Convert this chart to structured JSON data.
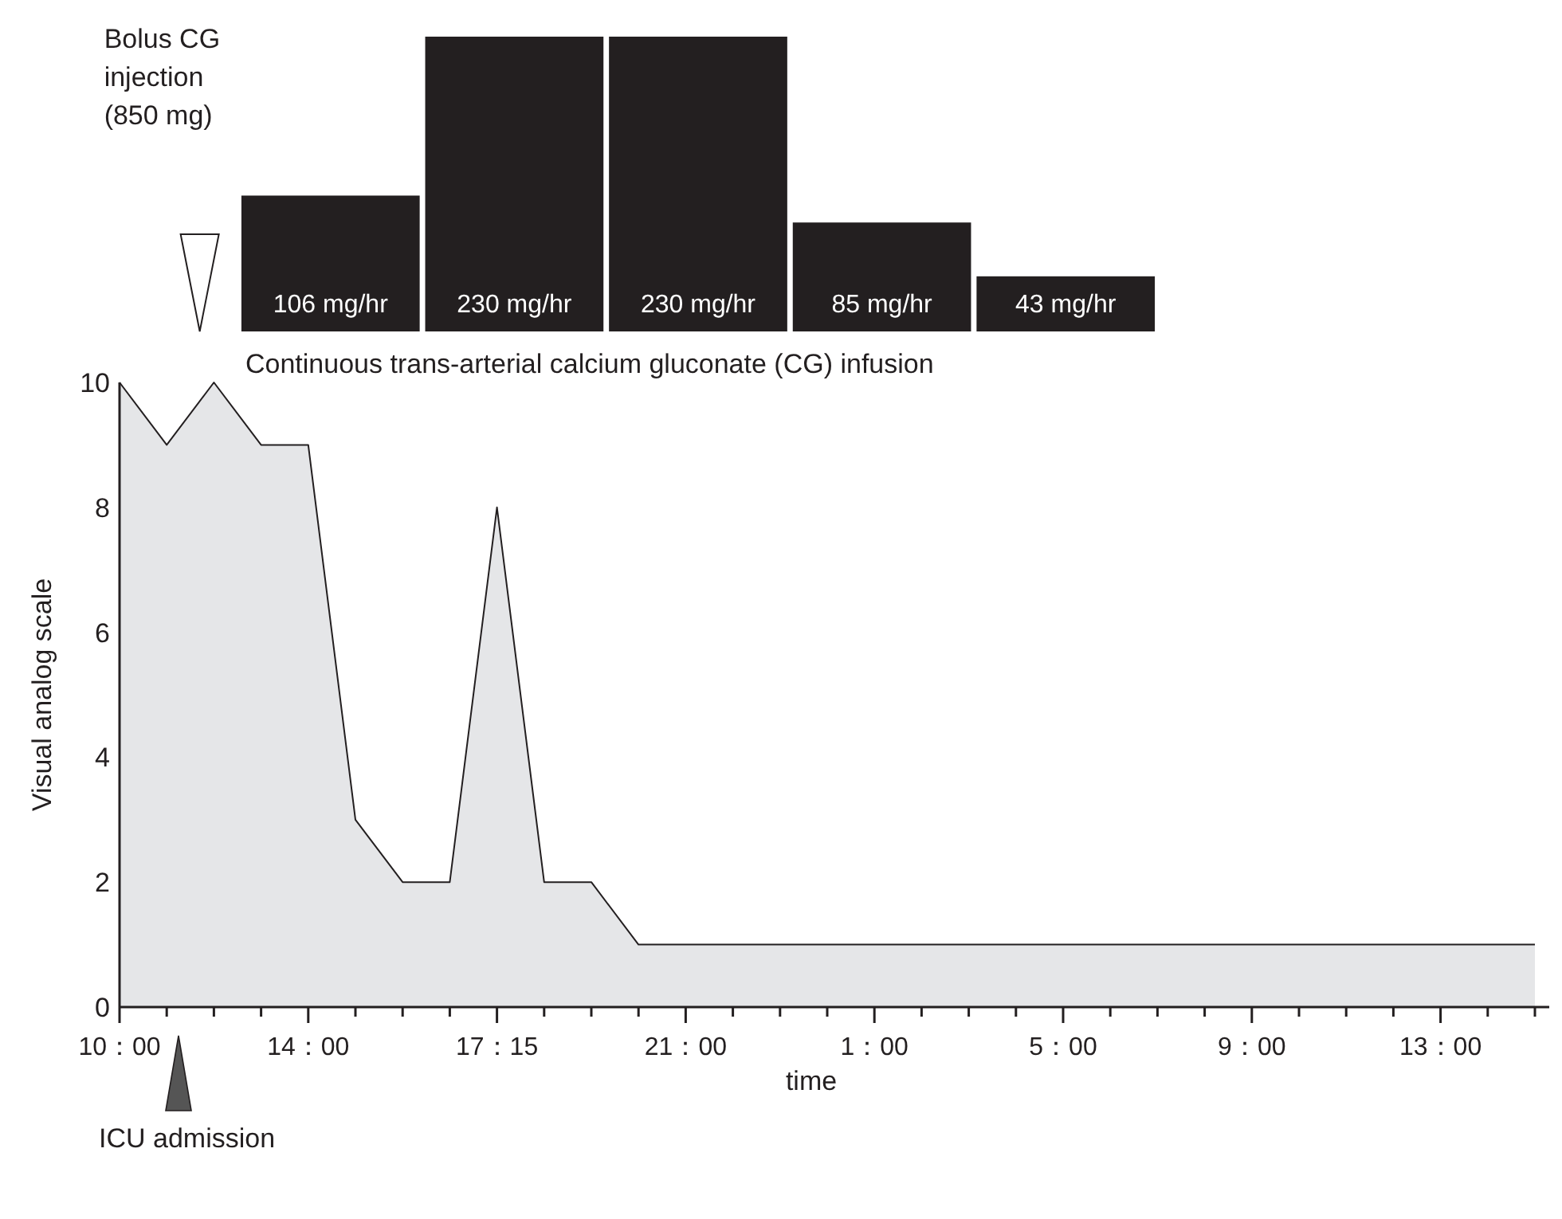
{
  "chart_data": [
    {
      "type": "area",
      "xlabel": "time",
      "ylabel": "Visual analog scale",
      "categories": [
        "10：00",
        null,
        null,
        null,
        "14：00",
        null,
        null,
        null,
        "17：15",
        null,
        null,
        null,
        "21：00",
        null,
        null,
        null,
        "1：00",
        null,
        null,
        null,
        "5：00",
        null,
        null,
        null,
        "9：00",
        null,
        null,
        null,
        "13：00",
        null,
        null
      ],
      "series": [
        {
          "color": "#e5e6e8",
          "values": [
            10,
            9,
            10,
            9,
            9,
            3,
            2,
            2,
            8,
            2,
            2,
            1,
            1,
            1,
            1,
            1,
            1,
            1,
            1,
            1,
            1,
            1,
            1,
            1,
            1,
            1,
            1,
            1,
            1,
            1,
            1
          ]
        }
      ],
      "ylim": [
        0,
        10
      ],
      "yticks": [
        0,
        2,
        4,
        6,
        8,
        10
      ],
      "grid": false,
      "annotations": [
        "Bolus CG\ninjection\n(850 mg)",
        "ICU admission"
      ]
    },
    {
      "type": "bar",
      "title": "Continuous trans-arterial calcium gluconate (CG) infusion",
      "categories": [
        null,
        null,
        null,
        null,
        null
      ],
      "values": [
        106,
        230,
        230,
        85,
        43
      ],
      "color": "#231f20",
      "value_labels": [
        "106 mg/hr",
        "230 mg/hr",
        "230 mg/hr",
        "85 mg/hr",
        "43 mg/hr"
      ]
    }
  ]
}
